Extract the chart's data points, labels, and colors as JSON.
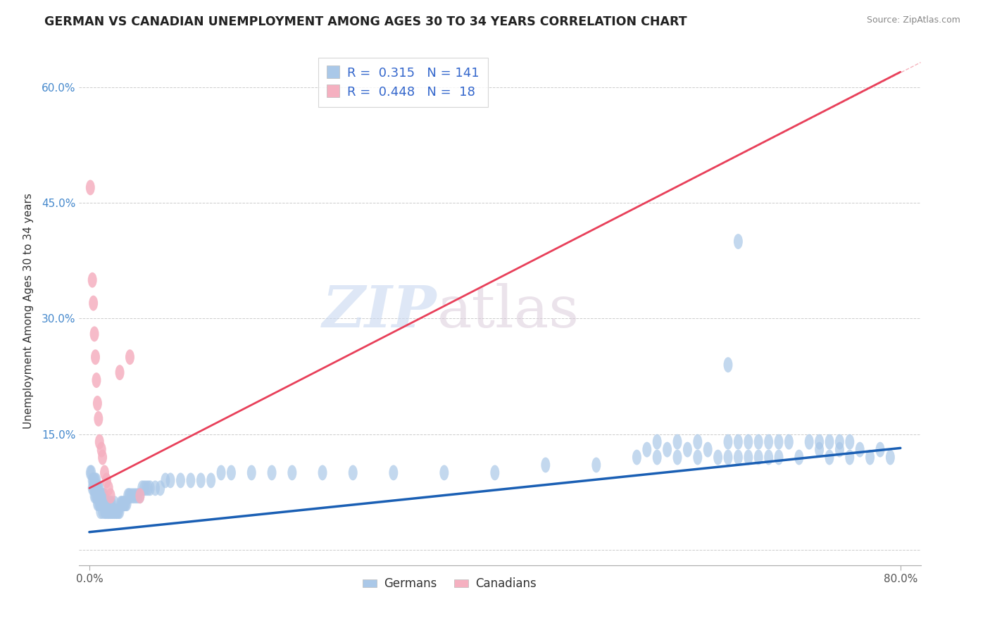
{
  "title": "GERMAN VS CANADIAN UNEMPLOYMENT AMONG AGES 30 TO 34 YEARS CORRELATION CHART",
  "source": "Source: ZipAtlas.com",
  "ylabel": "Unemployment Among Ages 30 to 34 years",
  "xlim": [
    -0.01,
    0.82
  ],
  "ylim": [
    -0.02,
    0.64
  ],
  "xticks": [
    0.0,
    0.8
  ],
  "xtick_labels": [
    "0.0%",
    "80.0%"
  ],
  "yticks": [
    0.0,
    0.15,
    0.3,
    0.45,
    0.6
  ],
  "ytick_labels": [
    "",
    "15.0%",
    "30.0%",
    "45.0%",
    "60.0%"
  ],
  "watermark_zip": "ZIP",
  "watermark_atlas": "atlas",
  "legend_r_german": "0.315",
  "legend_n_german": "141",
  "legend_r_canadian": "0.448",
  "legend_n_canadian": "18",
  "german_color": "#aac8e8",
  "canadian_color": "#f5b0c0",
  "german_line_color": "#1a5fb4",
  "canadian_line_color": "#e8405a",
  "background_color": "#ffffff",
  "grid_color": "#cccccc",
  "title_fontsize": 12.5,
  "german_trend_x0": 0.0,
  "german_trend_y0": 0.023,
  "german_trend_x1": 0.8,
  "german_trend_y1": 0.132,
  "canadian_trend_x0": 0.0,
  "canadian_trend_y0": 0.08,
  "canadian_trend_x1": 0.8,
  "canadian_trend_y1": 0.62,
  "german_x": [
    0.001,
    0.002,
    0.003,
    0.003,
    0.004,
    0.004,
    0.005,
    0.005,
    0.005,
    0.006,
    0.006,
    0.006,
    0.007,
    0.007,
    0.007,
    0.008,
    0.008,
    0.008,
    0.009,
    0.009,
    0.009,
    0.01,
    0.01,
    0.01,
    0.011,
    0.011,
    0.011,
    0.012,
    0.012,
    0.013,
    0.013,
    0.013,
    0.014,
    0.014,
    0.015,
    0.015,
    0.015,
    0.016,
    0.016,
    0.017,
    0.017,
    0.018,
    0.018,
    0.019,
    0.019,
    0.02,
    0.02,
    0.021,
    0.021,
    0.022,
    0.022,
    0.023,
    0.024,
    0.025,
    0.025,
    0.026,
    0.027,
    0.028,
    0.029,
    0.03,
    0.031,
    0.032,
    0.033,
    0.034,
    0.035,
    0.036,
    0.037,
    0.038,
    0.039,
    0.04,
    0.042,
    0.044,
    0.046,
    0.048,
    0.05,
    0.052,
    0.054,
    0.056,
    0.058,
    0.06,
    0.065,
    0.07,
    0.075,
    0.08,
    0.09,
    0.1,
    0.11,
    0.12,
    0.13,
    0.14,
    0.16,
    0.18,
    0.2,
    0.23,
    0.26,
    0.3,
    0.35,
    0.4,
    0.45,
    0.5,
    0.54,
    0.56,
    0.58,
    0.6,
    0.62,
    0.63,
    0.64,
    0.65,
    0.66,
    0.67,
    0.68,
    0.7,
    0.72,
    0.73,
    0.74,
    0.75,
    0.76,
    0.77,
    0.78,
    0.79,
    0.63,
    0.64,
    0.55,
    0.56,
    0.57,
    0.58,
    0.59,
    0.6,
    0.61,
    0.63,
    0.64,
    0.65,
    0.66,
    0.67,
    0.68,
    0.69,
    0.71,
    0.72,
    0.73,
    0.74,
    0.75
  ],
  "german_y": [
    0.1,
    0.1,
    0.09,
    0.08,
    0.09,
    0.08,
    0.09,
    0.08,
    0.07,
    0.09,
    0.08,
    0.07,
    0.09,
    0.08,
    0.07,
    0.08,
    0.07,
    0.06,
    0.08,
    0.07,
    0.06,
    0.08,
    0.07,
    0.06,
    0.07,
    0.06,
    0.05,
    0.07,
    0.06,
    0.07,
    0.06,
    0.05,
    0.07,
    0.06,
    0.07,
    0.06,
    0.05,
    0.06,
    0.05,
    0.06,
    0.05,
    0.06,
    0.05,
    0.06,
    0.05,
    0.06,
    0.05,
    0.06,
    0.05,
    0.06,
    0.05,
    0.05,
    0.05,
    0.06,
    0.05,
    0.05,
    0.05,
    0.05,
    0.05,
    0.05,
    0.06,
    0.06,
    0.06,
    0.06,
    0.06,
    0.06,
    0.06,
    0.07,
    0.07,
    0.07,
    0.07,
    0.07,
    0.07,
    0.07,
    0.07,
    0.08,
    0.08,
    0.08,
    0.08,
    0.08,
    0.08,
    0.08,
    0.09,
    0.09,
    0.09,
    0.09,
    0.09,
    0.09,
    0.1,
    0.1,
    0.1,
    0.1,
    0.1,
    0.1,
    0.1,
    0.1,
    0.1,
    0.1,
    0.11,
    0.11,
    0.12,
    0.12,
    0.12,
    0.12,
    0.12,
    0.12,
    0.12,
    0.12,
    0.12,
    0.12,
    0.12,
    0.12,
    0.13,
    0.12,
    0.13,
    0.12,
    0.13,
    0.12,
    0.13,
    0.12,
    0.24,
    0.4,
    0.13,
    0.14,
    0.13,
    0.14,
    0.13,
    0.14,
    0.13,
    0.14,
    0.14,
    0.14,
    0.14,
    0.14,
    0.14,
    0.14,
    0.14,
    0.14,
    0.14,
    0.14,
    0.14
  ],
  "canadian_x": [
    0.001,
    0.003,
    0.004,
    0.005,
    0.006,
    0.007,
    0.008,
    0.009,
    0.01,
    0.012,
    0.013,
    0.015,
    0.017,
    0.019,
    0.021,
    0.03,
    0.04,
    0.05
  ],
  "canadian_y": [
    0.47,
    0.35,
    0.32,
    0.28,
    0.25,
    0.22,
    0.19,
    0.17,
    0.14,
    0.13,
    0.12,
    0.1,
    0.09,
    0.08,
    0.07,
    0.23,
    0.25,
    0.07
  ]
}
